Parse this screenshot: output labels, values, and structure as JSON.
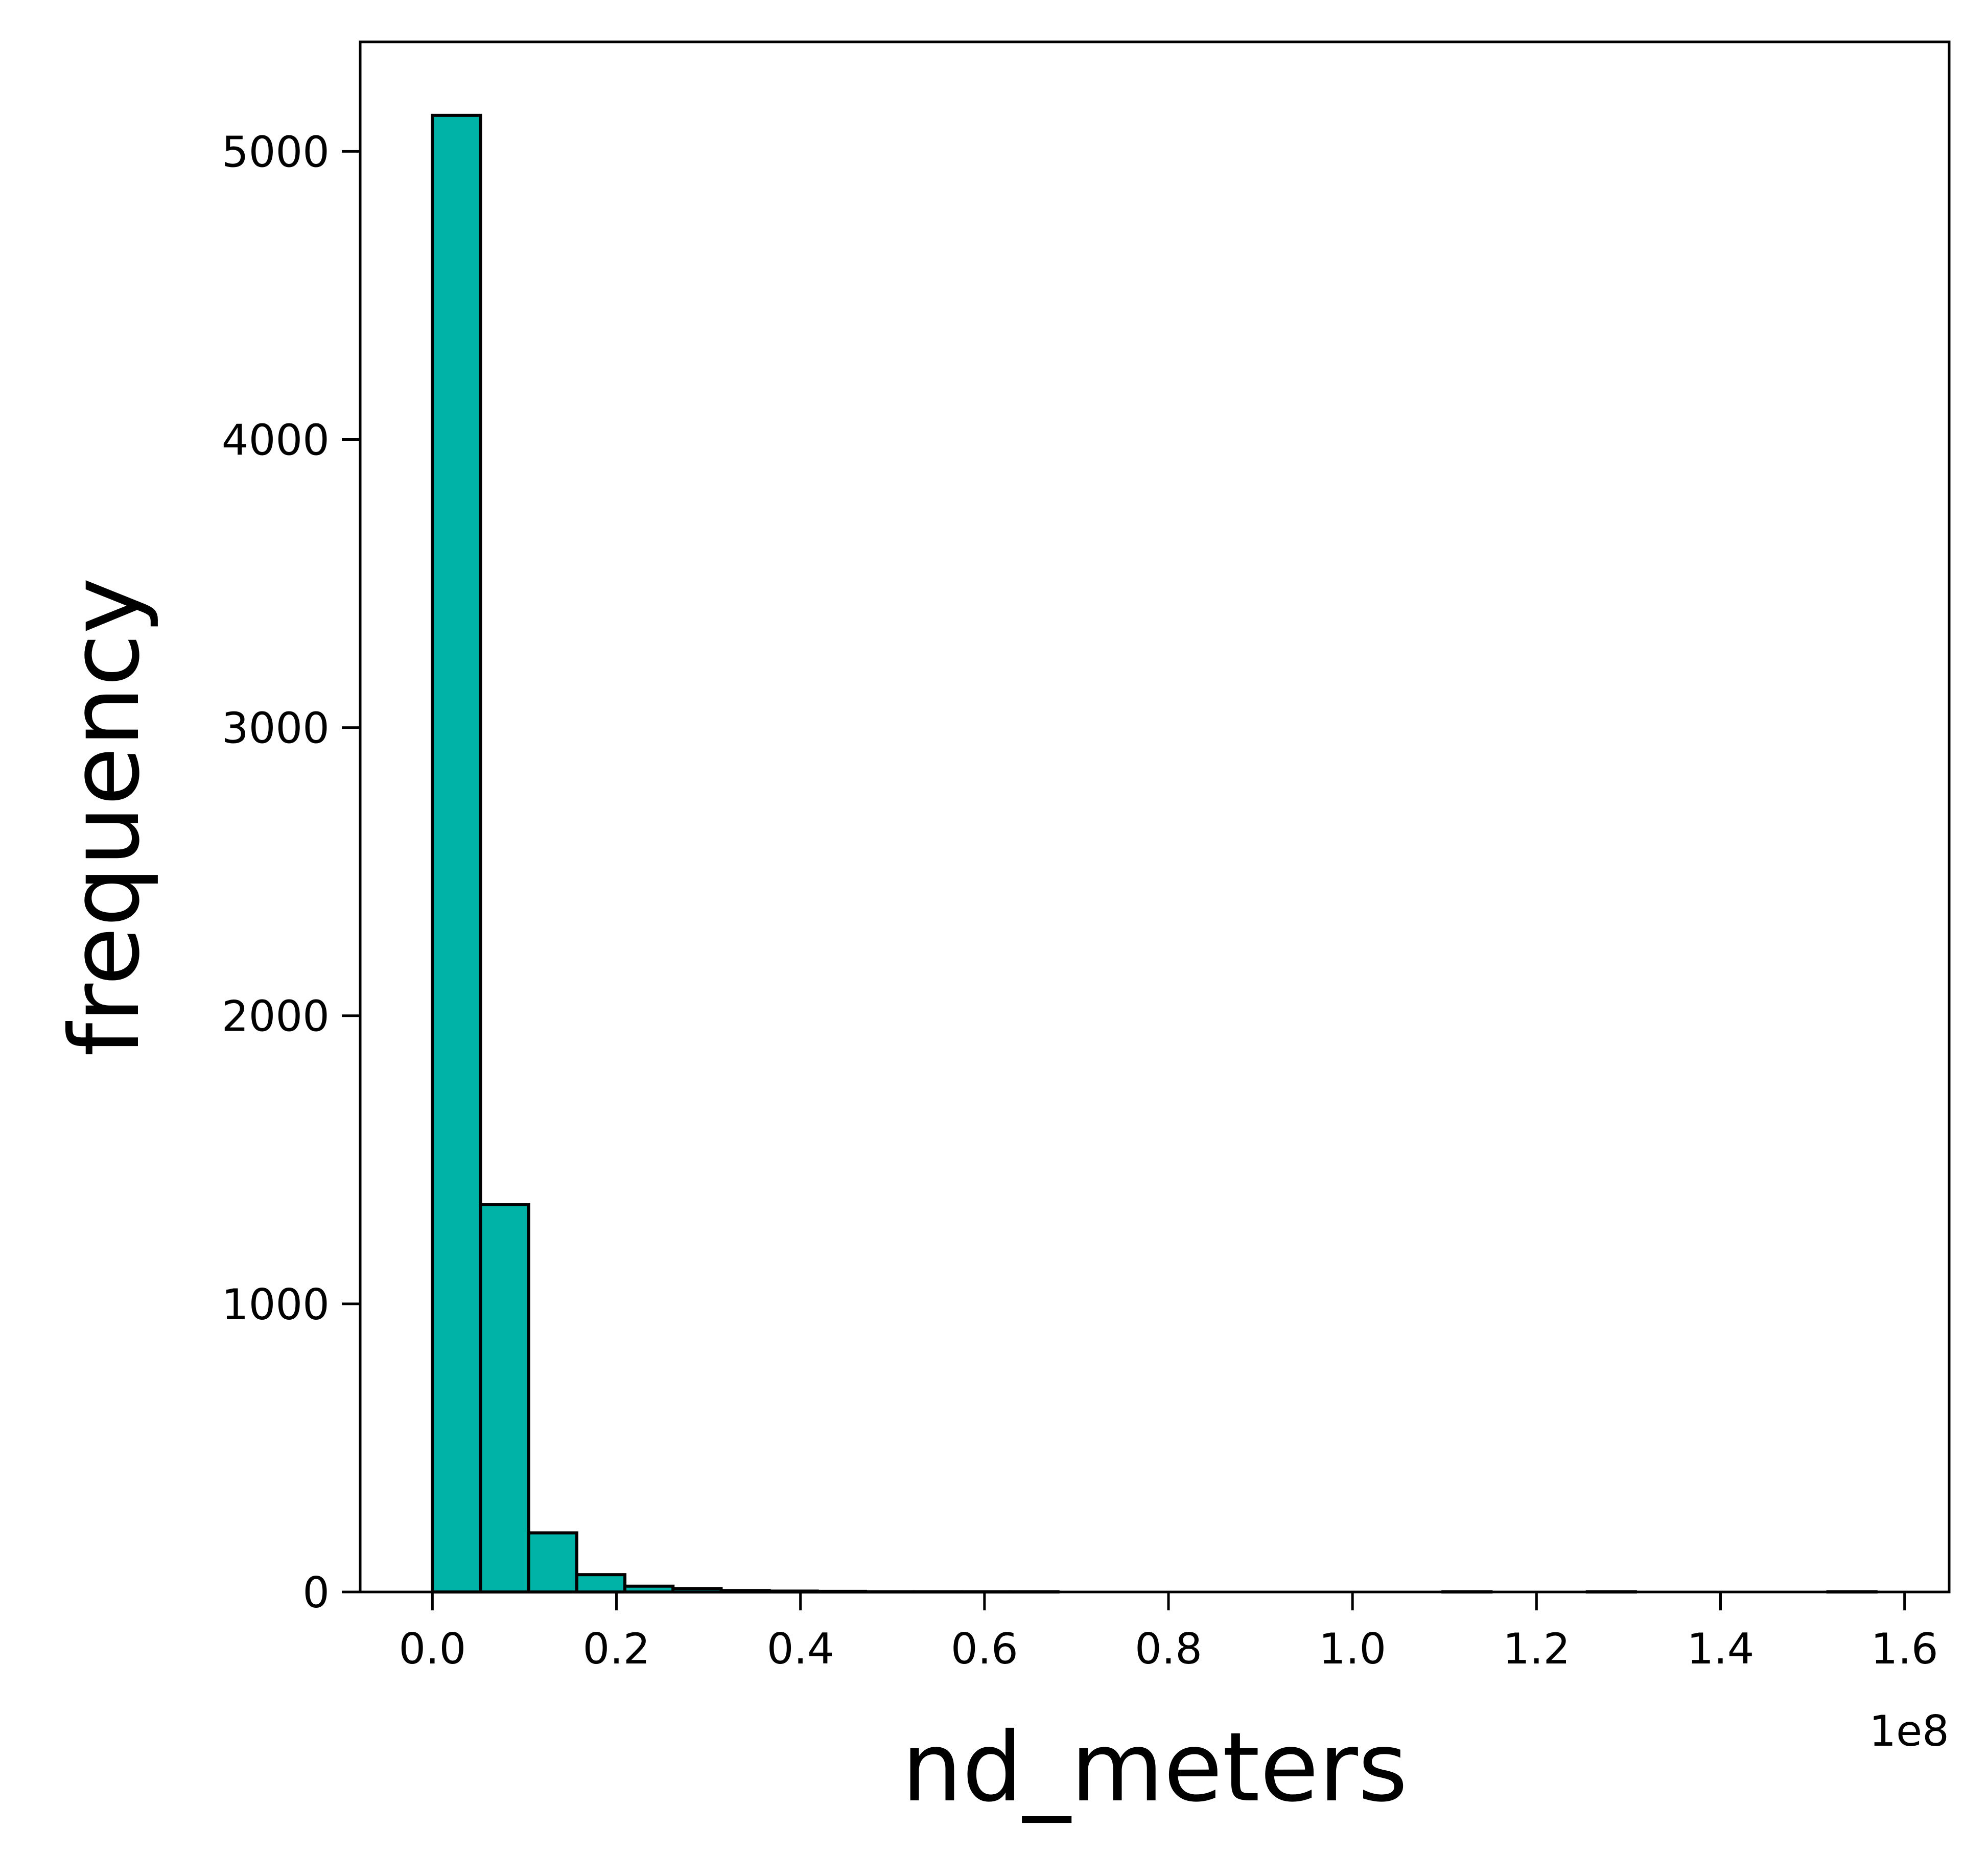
{
  "chart_data": {
    "type": "bar",
    "title": "",
    "xlabel": "nd_meters",
    "ylabel": "frequency",
    "x_offset_label": "1e8",
    "xlim": [
      -0.0785,
      1.6485
    ],
    "ylim": [
      0,
      5380
    ],
    "x_ticks": [
      0.0,
      0.2,
      0.4,
      0.6,
      0.8,
      1.0,
      1.2,
      1.4,
      1.6
    ],
    "x_tick_labels": [
      "0.0",
      "0.2",
      "0.4",
      "0.6",
      "0.8",
      "1.0",
      "1.2",
      "1.4",
      "1.6"
    ],
    "y_ticks": [
      0,
      1000,
      2000,
      3000,
      4000,
      5000
    ],
    "y_tick_labels": [
      "0",
      "1000",
      "2000",
      "3000",
      "4000",
      "5000"
    ],
    "bin_edges": [
      0.0,
      0.0523,
      0.1046,
      0.1569,
      0.2092,
      0.2615,
      0.3138,
      0.3661,
      0.4184,
      0.4707,
      0.523,
      0.5753,
      0.6276,
      0.6799,
      0.7322,
      0.7845,
      0.8368,
      0.8891,
      0.9414,
      0.9937,
      1.046,
      1.0983,
      1.1506,
      1.2029,
      1.2552,
      1.3075,
      1.3598,
      1.4121,
      1.4644,
      1.5167,
      1.569
    ],
    "values": [
      5125,
      1345,
      205,
      60,
      20,
      12,
      5,
      3,
      2,
      1,
      1,
      1,
      1,
      0,
      0,
      0,
      0,
      0,
      0,
      0,
      0,
      1,
      0,
      0,
      1,
      0,
      0,
      0,
      0,
      1
    ],
    "bar_color": "#00b3a7",
    "edge_color": "#000000",
    "grid": false
  }
}
